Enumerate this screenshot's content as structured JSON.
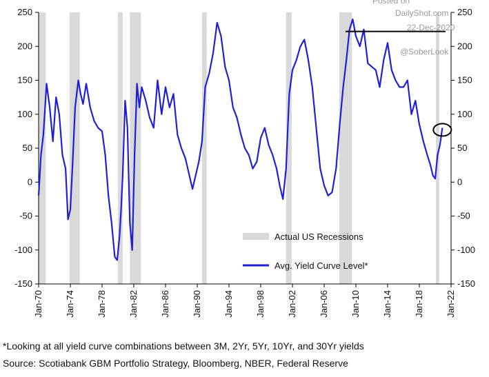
{
  "chart_data": {
    "type": "line",
    "title": "",
    "xlabel": "",
    "ylabel": "",
    "ylim": [
      -150,
      250
    ],
    "y_ticks": [
      -150,
      -100,
      -50,
      0,
      50,
      100,
      150,
      200,
      250
    ],
    "y_tick_labels": [
      "-150",
      "-100",
      "-50",
      "0",
      "50",
      "100",
      "150",
      "200",
      "250"
    ],
    "right_axis_ticks": [
      -150,
      -100,
      -50,
      0,
      50,
      100,
      150,
      200,
      250
    ],
    "x_range": [
      1970.0,
      2022.0
    ],
    "x_ticks": [
      1970,
      1974,
      1978,
      1982,
      1986,
      1990,
      1994,
      1998,
      2002,
      2006,
      2010,
      2014,
      2018,
      2022
    ],
    "x_tick_labels": [
      "Jan-70",
      "Jan-74",
      "Jan-78",
      "Jan-82",
      "Jan-86",
      "Jan-90",
      "Jan-94",
      "Jan-98",
      "Jan-02",
      "Jan-06",
      "Jan-10",
      "Jan-14",
      "Jan-18",
      "Jan-22"
    ],
    "grid": false,
    "legend_position": "bottom-right",
    "recessions": [
      {
        "start": 1970.0,
        "end": 1970.9
      },
      {
        "start": 1973.9,
        "end": 1975.2
      },
      {
        "start": 1980.0,
        "end": 1980.6
      },
      {
        "start": 1981.5,
        "end": 1982.9
      },
      {
        "start": 1990.6,
        "end": 1991.2
      },
      {
        "start": 2001.2,
        "end": 2001.9
      },
      {
        "start": 2007.9,
        "end": 2009.5
      },
      {
        "start": 2020.1,
        "end": 2020.5
      }
    ],
    "series": [
      {
        "name": "Avg. Yield Curve Level*",
        "color": "#1f1fd6",
        "x": [
          1970.0,
          1970.3,
          1970.6,
          1971.0,
          1971.4,
          1971.8,
          1972.2,
          1972.6,
          1973.0,
          1973.4,
          1973.7,
          1974.0,
          1974.3,
          1974.6,
          1975.0,
          1975.3,
          1975.6,
          1976.0,
          1976.5,
          1977.0,
          1977.5,
          1978.0,
          1978.4,
          1978.8,
          1979.2,
          1979.6,
          1979.9,
          1980.2,
          1980.4,
          1980.6,
          1980.9,
          1981.2,
          1981.5,
          1981.8,
          1982.1,
          1982.4,
          1982.7,
          1983.0,
          1983.5,
          1984.0,
          1984.5,
          1985.0,
          1985.5,
          1986.0,
          1986.5,
          1987.0,
          1987.5,
          1988.0,
          1988.5,
          1989.0,
          1989.4,
          1989.8,
          1990.2,
          1990.6,
          1991.0,
          1991.5,
          1992.0,
          1992.5,
          1993.0,
          1993.5,
          1994.0,
          1994.5,
          1995.0,
          1995.5,
          1996.0,
          1996.5,
          1997.0,
          1997.5,
          1998.0,
          1998.5,
          1999.0,
          1999.5,
          2000.0,
          2000.4,
          2000.8,
          2001.2,
          2001.6,
          2002.0,
          2002.5,
          2003.0,
          2003.5,
          2004.0,
          2004.5,
          2005.0,
          2005.5,
          2006.0,
          2006.5,
          2007.0,
          2007.5,
          2008.0,
          2008.4,
          2008.8,
          2009.2,
          2009.6,
          2010.0,
          2010.5,
          2011.0,
          2011.5,
          2012.0,
          2012.5,
          2013.0,
          2013.5,
          2014.0,
          2014.5,
          2015.0,
          2015.5,
          2016.0,
          2016.5,
          2017.0,
          2017.5,
          2018.0,
          2018.5,
          2019.0,
          2019.4,
          2019.7,
          2020.0,
          2020.3,
          2020.6,
          2020.9
        ],
        "y": [
          -20,
          40,
          70,
          145,
          110,
          60,
          125,
          100,
          40,
          20,
          -55,
          -40,
          30,
          110,
          150,
          130,
          115,
          145,
          110,
          90,
          80,
          75,
          40,
          -20,
          -60,
          -110,
          -115,
          -80,
          -40,
          10,
          120,
          80,
          -60,
          -100,
          40,
          145,
          110,
          140,
          120,
          95,
          80,
          150,
          100,
          140,
          110,
          130,
          70,
          50,
          35,
          10,
          -10,
          10,
          30,
          60,
          140,
          160,
          190,
          235,
          215,
          170,
          150,
          110,
          95,
          70,
          50,
          40,
          20,
          30,
          65,
          80,
          55,
          40,
          20,
          -5,
          -25,
          20,
          130,
          165,
          180,
          200,
          210,
          180,
          140,
          80,
          20,
          -5,
          -20,
          -15,
          20,
          90,
          140,
          180,
          225,
          240,
          215,
          200,
          225,
          175,
          170,
          165,
          140,
          180,
          205,
          165,
          150,
          140,
          140,
          150,
          100,
          120,
          85,
          60,
          40,
          25,
          10,
          5,
          40,
          55,
          80
        ]
      }
    ],
    "annotations": [
      {
        "type": "horizontal-line",
        "y": 222,
        "x_start": 2008.7,
        "x_end": 2021.3
      },
      {
        "type": "circle",
        "x": 2020.9,
        "y": 77
      }
    ],
    "legend": [
      {
        "label": "Actual US Recessions",
        "kind": "band",
        "color": "#d9d9d9"
      },
      {
        "label": "Avg. Yield Curve Level*",
        "kind": "line",
        "color": "#1f1fd6"
      }
    ]
  },
  "watermark": {
    "source": "Posted on",
    "site": "DailyShot.com",
    "date": "22-Dec-2020",
    "handle": "@SoberLook"
  },
  "footnote": "*Looking at all yield curve combinations between 3M, 2Yr, 5Yr, 10Yr, and 30Yr yields",
  "source_line": "Source: Scotiabank GBM Portfolio Strategy, Bloomberg, NBER, Federal Reserve"
}
